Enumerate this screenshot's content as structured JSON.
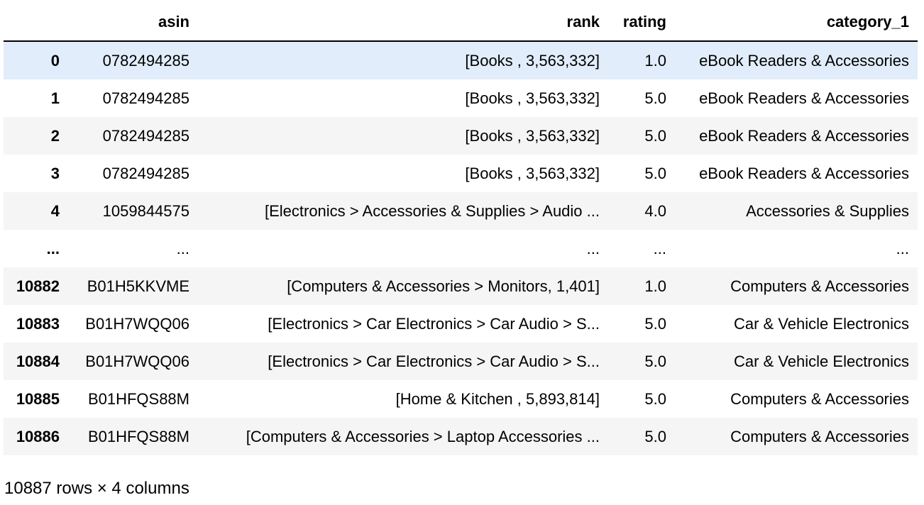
{
  "table": {
    "columns": {
      "index": "",
      "asin": "asin",
      "rank": "rank",
      "rating": "rating",
      "category_1": "category_1"
    },
    "rows": [
      {
        "index": "0",
        "asin": "0782494285",
        "rank": "[Books , 3,563,332]",
        "rating": "1.0",
        "category_1": "eBook Readers & Accessories"
      },
      {
        "index": "1",
        "asin": "0782494285",
        "rank": "[Books , 3,563,332]",
        "rating": "5.0",
        "category_1": "eBook Readers & Accessories"
      },
      {
        "index": "2",
        "asin": "0782494285",
        "rank": "[Books , 3,563,332]",
        "rating": "5.0",
        "category_1": "eBook Readers & Accessories"
      },
      {
        "index": "3",
        "asin": "0782494285",
        "rank": "[Books , 3,563,332]",
        "rating": "5.0",
        "category_1": "eBook Readers & Accessories"
      },
      {
        "index": "4",
        "asin": "1059844575",
        "rank": "[Electronics > Accessories & Supplies > Audio ...",
        "rating": "4.0",
        "category_1": "Accessories & Supplies"
      },
      {
        "index": "...",
        "asin": "...",
        "rank": "...",
        "rating": "...",
        "category_1": "..."
      },
      {
        "index": "10882",
        "asin": "B01H5KKVME",
        "rank": "[Computers & Accessories > Monitors, 1,401]",
        "rating": "1.0",
        "category_1": "Computers & Accessories"
      },
      {
        "index": "10883",
        "asin": "B01H7WQQ06",
        "rank": "[Electronics > Car Electronics > Car Audio > S...",
        "rating": "5.0",
        "category_1": "Car & Vehicle Electronics"
      },
      {
        "index": "10884",
        "asin": "B01H7WQQ06",
        "rank": "[Electronics > Car Electronics > Car Audio > S...",
        "rating": "5.0",
        "category_1": "Car & Vehicle Electronics"
      },
      {
        "index": "10885",
        "asin": "B01HFQS88M",
        "rank": "[Home & Kitchen , 5,893,814]",
        "rating": "5.0",
        "category_1": "Computers & Accessories"
      },
      {
        "index": "10886",
        "asin": "B01HFQS88M",
        "rank": "[Computers & Accessories > Laptop Accessories ...",
        "rating": "5.0",
        "category_1": "Computers & Accessories"
      }
    ],
    "footer": "10887 rows × 4 columns"
  },
  "colors": {
    "header_rule": "#000000",
    "row_stripe": "#f5f5f5",
    "row_hover": "#e1edfa",
    "text": "#000000"
  }
}
